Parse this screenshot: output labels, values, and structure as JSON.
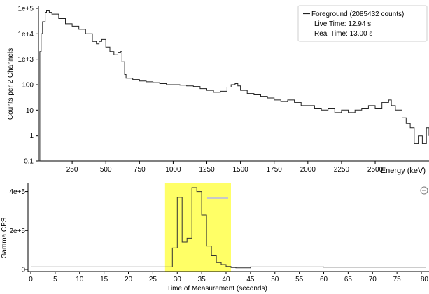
{
  "spectrum": {
    "y_axis_label": "Counts per 2 Channels",
    "x_axis_label": "Energy (keV)",
    "y_tick_labels": [
      "1e+5",
      "1e+4",
      "1e+3",
      "100",
      "10",
      "1",
      "0.1"
    ],
    "x_tick_labels": [
      "250",
      "500",
      "750",
      "1000",
      "1250",
      "1500",
      "1750",
      "2000",
      "2250",
      "2500"
    ],
    "legend": {
      "series_label": "Foreground (2085432 counts)",
      "live_time": "Live Time: 12.94 s",
      "real_time": "Real Time: 13.00 s"
    }
  },
  "time_chart": {
    "y_axis_label": "Gamma CPS",
    "x_axis_label": "Time of Measurement (seconds)",
    "y_tick_labels": [
      "4e+5",
      "2e+5",
      "0"
    ],
    "x_tick_labels": [
      "0",
      "5",
      "10",
      "15",
      "20",
      "25",
      "30",
      "35",
      "40",
      "45",
      "50",
      "55",
      "60",
      "65",
      "70",
      "75",
      "80"
    ],
    "highlight_color": "#ffff66",
    "line_color": "#333333"
  },
  "chart_data": [
    {
      "type": "line",
      "ylabel": "Counts per 2 Channels",
      "xlabel": "Energy (keV)",
      "yscale": "log",
      "ylim": [
        0.1,
        100000
      ],
      "xlim": [
        0,
        2900
      ],
      "grid": false,
      "legend_position": "top-right",
      "series": [
        {
          "name": "Foreground (2085432 counts)",
          "x": [
            0,
            10,
            20,
            30,
            50,
            60,
            80,
            100,
            150,
            200,
            250,
            300,
            350,
            400,
            430,
            450,
            470,
            500,
            530,
            560,
            590,
            610,
            620,
            640,
            650,
            700,
            750,
            800,
            850,
            900,
            950,
            1000,
            1050,
            1100,
            1150,
            1200,
            1250,
            1300,
            1350,
            1400,
            1430,
            1460,
            1480,
            1500,
            1550,
            1600,
            1650,
            1700,
            1750,
            1800,
            1850,
            1900,
            1950,
            2000,
            2050,
            2100,
            2150,
            2200,
            2250,
            2300,
            2350,
            2400,
            2450,
            2500,
            2550,
            2600,
            2620,
            2650,
            2700,
            2730,
            2760,
            2790,
            2820,
            2850,
            2880,
            2900
          ],
          "y": [
            0.1,
            2000,
            10000,
            30000,
            70000,
            80000,
            70000,
            60000,
            40000,
            25000,
            20000,
            15000,
            10000,
            5000,
            4000,
            5000,
            6000,
            3000,
            2000,
            1500,
            1800,
            2000,
            800,
            250,
            180,
            160,
            140,
            130,
            120,
            110,
            100,
            100,
            95,
            90,
            85,
            70,
            60,
            50,
            55,
            80,
            100,
            110,
            90,
            60,
            45,
            40,
            35,
            30,
            25,
            22,
            25,
            20,
            15,
            15,
            12,
            10,
            12,
            8,
            10,
            8,
            10,
            12,
            15,
            12,
            20,
            25,
            15,
            10,
            5,
            3,
            2,
            0.5,
            1,
            0.5,
            2,
            1
          ]
        }
      ]
    },
    {
      "type": "line",
      "ylabel": "Gamma CPS",
      "xlabel": "Time of Measurement (seconds)",
      "ylim": [
        0,
        420000
      ],
      "xlim": [
        0,
        81
      ],
      "grid": false,
      "highlight_region": [
        27.5,
        41
      ],
      "series": [
        {
          "x": [
            0,
            27,
            28,
            29,
            30,
            31,
            32,
            33,
            33.5,
            34,
            35,
            36,
            37,
            38,
            39,
            40,
            41,
            42,
            45,
            50,
            60,
            70,
            81
          ],
          "y": [
            13000,
            13000,
            13000,
            110000,
            370000,
            140000,
            160000,
            420000,
            420000,
            400000,
            280000,
            120000,
            70000,
            35000,
            25000,
            15000,
            10000,
            8000,
            13000,
            13000,
            12000,
            12000,
            12000
          ]
        }
      ]
    }
  ]
}
